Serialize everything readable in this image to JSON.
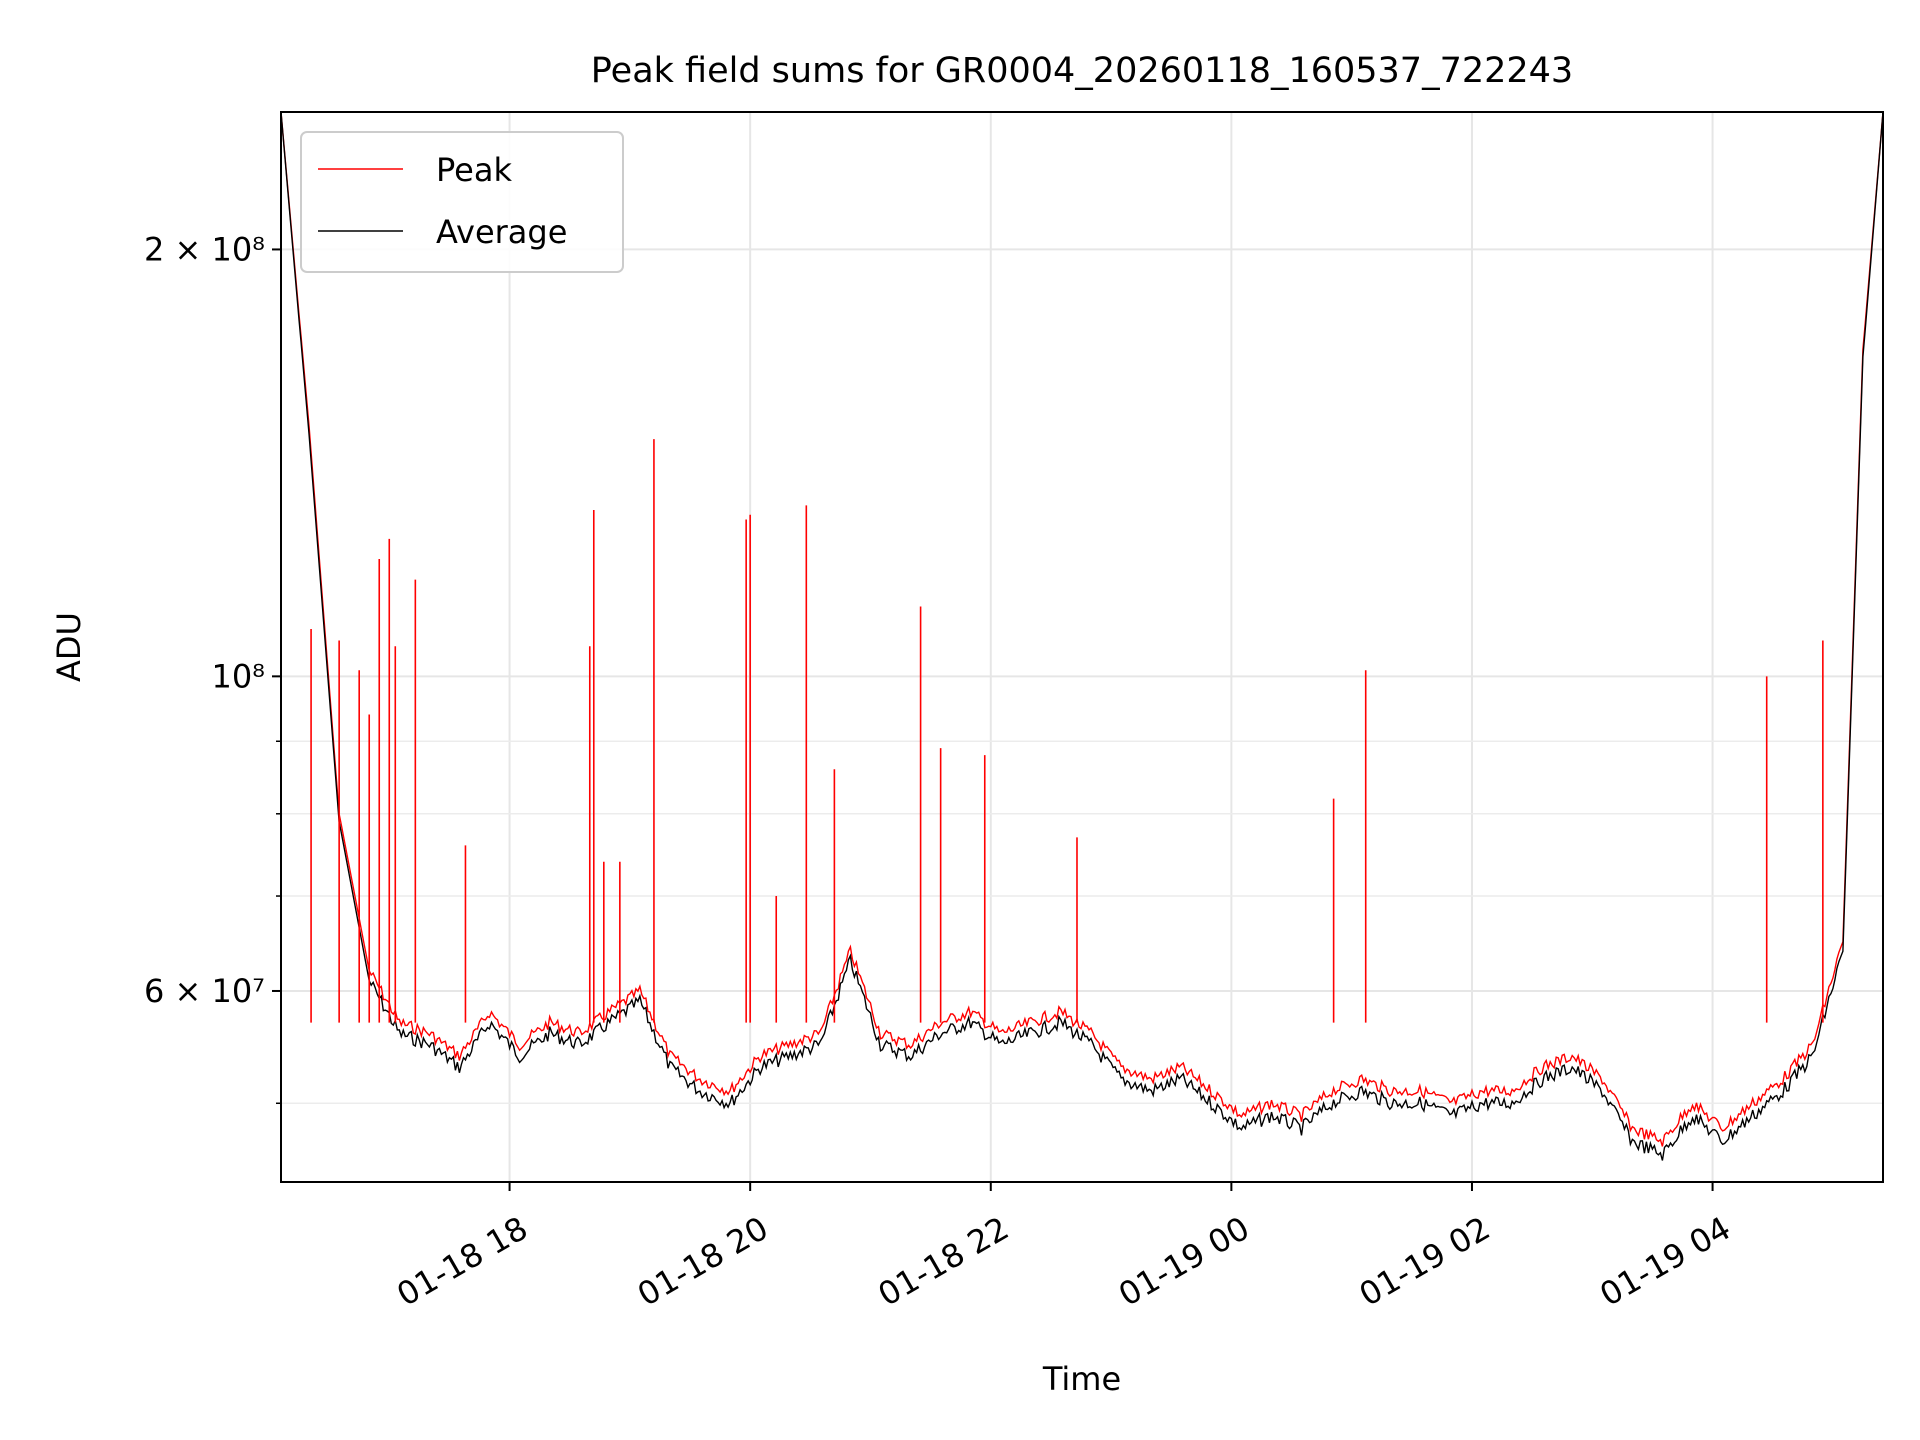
{
  "chart_data": {
    "type": "line",
    "title": "Peak field sums for GR0004_20260118_160537_722243",
    "xlabel": "Time",
    "ylabel": "ADU",
    "yscale": "log",
    "xlim": [
      "2026-01-18 16:06",
      "2026-01-19 05:25"
    ],
    "ylim": [
      44000000,
      250000000
    ],
    "x_ticks": [
      "01-18 18",
      "01-18 20",
      "01-18 22",
      "01-19 00",
      "01-19 02",
      "01-19 04"
    ],
    "y_tick_labels": [
      {
        "label": "2 × 10⁸",
        "value": 200000000
      },
      {
        "label": "10⁸",
        "value": 100000000
      },
      {
        "label": "6 × 10⁷",
        "value": 60000000
      }
    ],
    "y_minor_ticks": [
      50000000,
      70000000,
      80000000,
      90000000
    ],
    "grid": true,
    "legend": "upper left",
    "series": [
      {
        "name": "Peak",
        "color": "#ff0000",
        "x": [
          "2026-01-18 16:06",
          "2026-01-18 16:20",
          "2026-01-18 16:35",
          "2026-01-18 16:50",
          "2026-01-18 17:05",
          "2026-01-18 17:20",
          "2026-01-18 17:35",
          "2026-01-18 17:50",
          "2026-01-18 18:05",
          "2026-01-18 18:20",
          "2026-01-18 18:35",
          "2026-01-18 18:50",
          "2026-01-18 19:05",
          "2026-01-18 19:20",
          "2026-01-18 19:35",
          "2026-01-18 19:50",
          "2026-01-18 20:05",
          "2026-01-18 20:20",
          "2026-01-18 20:35",
          "2026-01-18 20:50",
          "2026-01-18 21:05",
          "2026-01-18 21:20",
          "2026-01-18 21:35",
          "2026-01-18 21:50",
          "2026-01-18 22:05",
          "2026-01-18 22:20",
          "2026-01-18 22:35",
          "2026-01-18 22:50",
          "2026-01-18 23:05",
          "2026-01-18 23:20",
          "2026-01-18 23:35",
          "2026-01-18 23:50",
          "2026-01-19 00:05",
          "2026-01-19 00:20",
          "2026-01-19 00:35",
          "2026-01-19 00:50",
          "2026-01-19 01:05",
          "2026-01-19 01:20",
          "2026-01-19 01:35",
          "2026-01-19 01:50",
          "2026-01-19 02:05",
          "2026-01-19 02:20",
          "2026-01-19 02:35",
          "2026-01-19 02:50",
          "2026-01-19 03:05",
          "2026-01-19 03:20",
          "2026-01-19 03:35",
          "2026-01-19 03:50",
          "2026-01-19 04:05",
          "2026-01-19 04:20",
          "2026-01-19 04:35",
          "2026-01-19 04:50",
          "2026-01-19 05:05",
          "2026-01-19 05:15",
          "2026-01-19 05:25"
        ],
        "values": [
          250000000,
          150000000,
          80000000,
          62000000,
          57000000,
          56000000,
          54000000,
          58000000,
          55000000,
          57000000,
          56000000,
          58000000,
          60000000,
          54000000,
          52000000,
          51000000,
          54000000,
          55000000,
          56000000,
          64000000,
          56000000,
          55000000,
          57000000,
          58000000,
          56000000,
          57000000,
          58000000,
          56000000,
          53000000,
          52000000,
          53000000,
          51000000,
          49000000,
          50000000,
          49000000,
          51000000,
          52000000,
          51000000,
          51000000,
          50000000,
          51000000,
          51000000,
          53000000,
          54000000,
          52000000,
          48000000,
          47000000,
          50000000,
          48000000,
          50000000,
          52000000,
          55000000,
          65000000,
          170000000,
          250000000
        ]
      },
      {
        "name": "Average",
        "color": "#000000",
        "x": [
          "2026-01-18 16:06",
          "2026-01-18 16:20",
          "2026-01-18 16:35",
          "2026-01-18 16:50",
          "2026-01-18 17:05",
          "2026-01-18 17:20",
          "2026-01-18 17:35",
          "2026-01-18 17:50",
          "2026-01-18 18:05",
          "2026-01-18 18:20",
          "2026-01-18 18:35",
          "2026-01-18 18:50",
          "2026-01-18 19:05",
          "2026-01-18 19:20",
          "2026-01-18 19:35",
          "2026-01-18 19:50",
          "2026-01-18 20:05",
          "2026-01-18 20:20",
          "2026-01-18 20:35",
          "2026-01-18 20:50",
          "2026-01-18 21:05",
          "2026-01-18 21:20",
          "2026-01-18 21:35",
          "2026-01-18 21:50",
          "2026-01-18 22:05",
          "2026-01-18 22:20",
          "2026-01-18 22:35",
          "2026-01-18 22:50",
          "2026-01-18 23:05",
          "2026-01-18 23:20",
          "2026-01-18 23:35",
          "2026-01-18 23:50",
          "2026-01-19 00:05",
          "2026-01-19 00:20",
          "2026-01-19 00:35",
          "2026-01-19 00:50",
          "2026-01-19 01:05",
          "2026-01-19 01:20",
          "2026-01-19 01:35",
          "2026-01-19 01:50",
          "2026-01-19 02:05",
          "2026-01-19 02:20",
          "2026-01-19 02:35",
          "2026-01-19 02:50",
          "2026-01-19 03:05",
          "2026-01-19 03:20",
          "2026-01-19 03:35",
          "2026-01-19 03:50",
          "2026-01-19 04:05",
          "2026-01-19 04:20",
          "2026-01-19 04:35",
          "2026-01-19 04:50",
          "2026-01-19 05:05",
          "2026-01-19 05:15",
          "2026-01-19 05:25"
        ],
        "values": [
          250000000,
          148000000,
          79000000,
          61000000,
          56000000,
          55000000,
          53000000,
          57000000,
          54000000,
          56000000,
          55000000,
          57000000,
          59000000,
          53000000,
          51000000,
          50000000,
          53000000,
          54000000,
          55000000,
          63000000,
          55000000,
          54000000,
          56000000,
          57000000,
          55000000,
          56000000,
          57000000,
          55000000,
          52000000,
          51000000,
          52000000,
          50000000,
          48000000,
          49000000,
          48000000,
          50000000,
          51000000,
          50000000,
          50000000,
          49000000,
          50000000,
          50000000,
          52000000,
          53000000,
          51000000,
          47000000,
          46000000,
          49000000,
          47000000,
          49000000,
          51000000,
          54000000,
          64000000,
          168000000,
          250000000
        ]
      }
    ],
    "peak_spikes": [
      {
        "x": "2026-01-18 16:21",
        "value": 108000000
      },
      {
        "x": "2026-01-18 16:35",
        "value": 106000000
      },
      {
        "x": "2026-01-18 16:45",
        "value": 101000000
      },
      {
        "x": "2026-01-18 16:50",
        "value": 94000000
      },
      {
        "x": "2026-01-18 16:55",
        "value": 121000000
      },
      {
        "x": "2026-01-18 17:00",
        "value": 125000000
      },
      {
        "x": "2026-01-18 17:03",
        "value": 105000000
      },
      {
        "x": "2026-01-18 17:13",
        "value": 117000000
      },
      {
        "x": "2026-01-18 17:38",
        "value": 76000000
      },
      {
        "x": "2026-01-18 18:40",
        "value": 105000000
      },
      {
        "x": "2026-01-18 18:42",
        "value": 131000000
      },
      {
        "x": "2026-01-18 18:47",
        "value": 74000000
      },
      {
        "x": "2026-01-18 18:55",
        "value": 74000000
      },
      {
        "x": "2026-01-18 19:12",
        "value": 147000000
      },
      {
        "x": "2026-01-18 19:58",
        "value": 129000000
      },
      {
        "x": "2026-01-18 20:00",
        "value": 130000000
      },
      {
        "x": "2026-01-18 20:13",
        "value": 70000000
      },
      {
        "x": "2026-01-18 20:28",
        "value": 132000000
      },
      {
        "x": "2026-01-18 20:42",
        "value": 86000000
      },
      {
        "x": "2026-01-18 21:25",
        "value": 112000000
      },
      {
        "x": "2026-01-18 21:35",
        "value": 89000000
      },
      {
        "x": "2026-01-18 21:57",
        "value": 88000000
      },
      {
        "x": "2026-01-18 22:43",
        "value": 77000000
      },
      {
        "x": "2026-01-19 00:51",
        "value": 82000000
      },
      {
        "x": "2026-01-19 01:07",
        "value": 101000000
      },
      {
        "x": "2026-01-19 04:27",
        "value": 100000000
      },
      {
        "x": "2026-01-19 04:55",
        "value": 106000000
      }
    ]
  }
}
